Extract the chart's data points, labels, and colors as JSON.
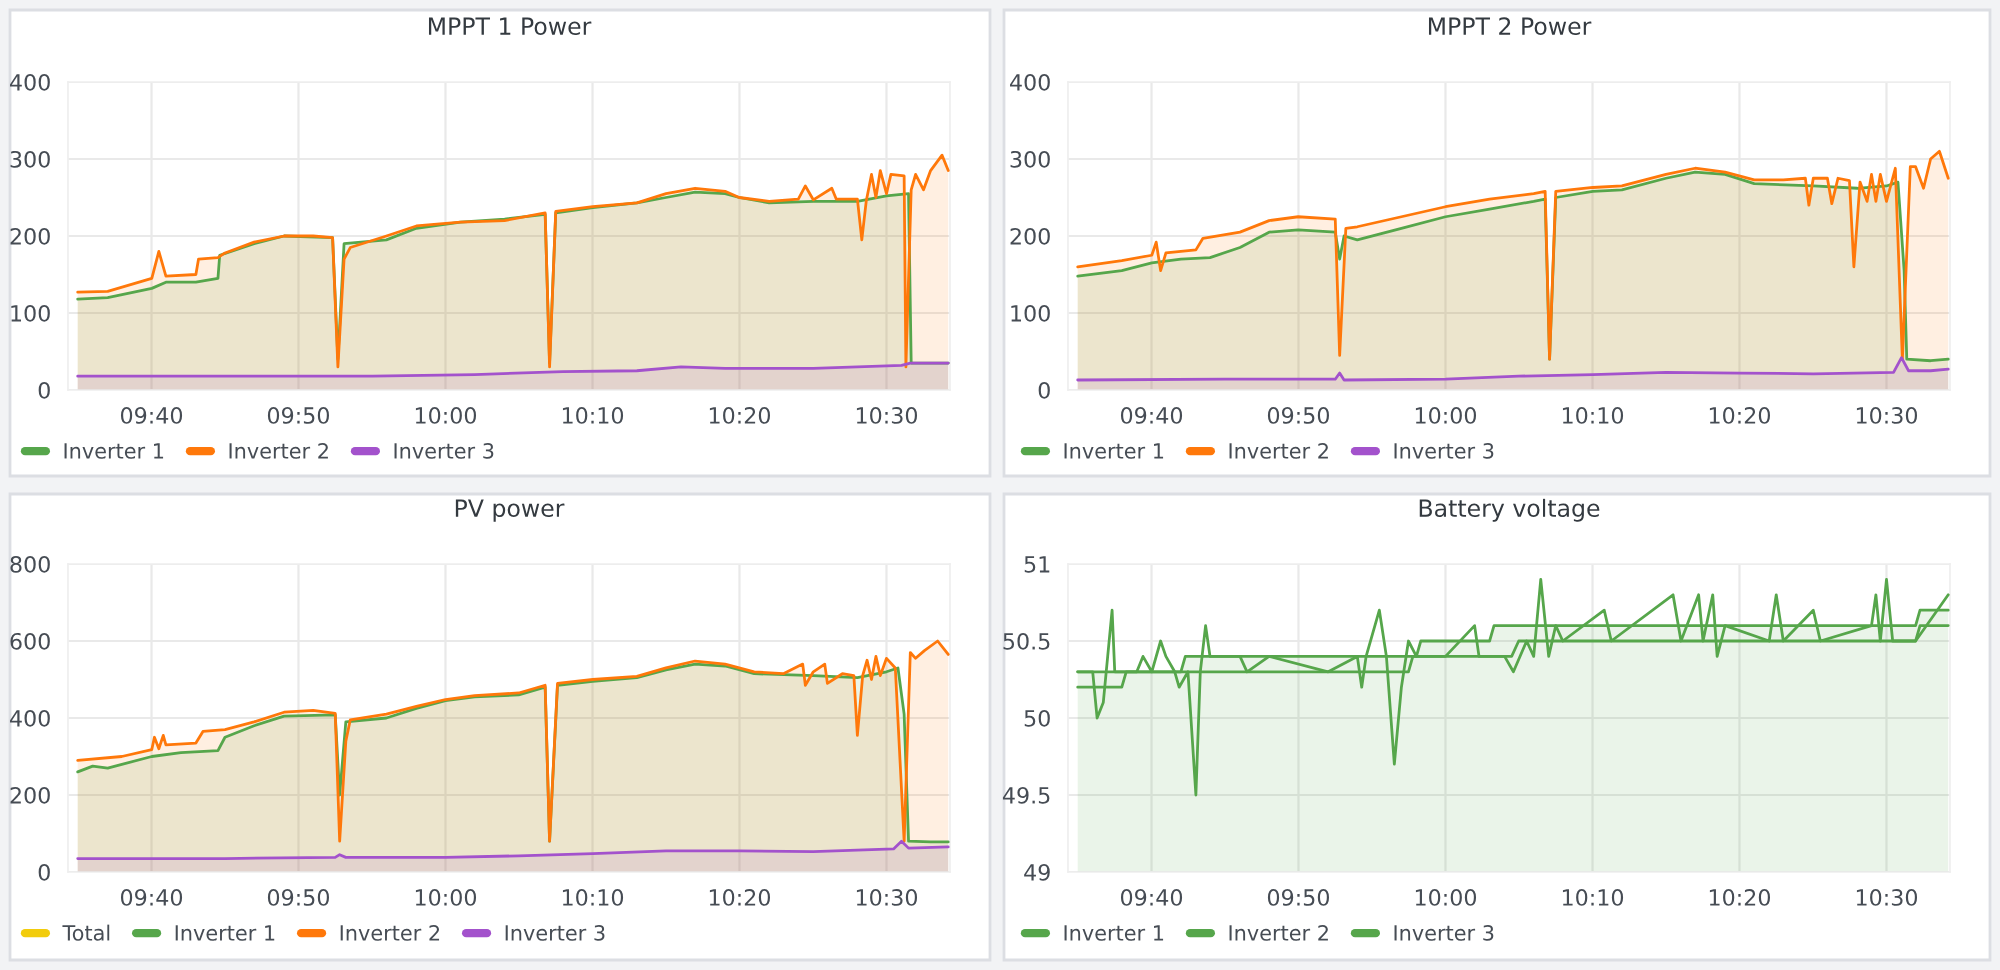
{
  "chart_data": [
    {
      "type": "area",
      "title": "MPPT 1 Power",
      "xlim": [
        9.572,
        10.572
      ],
      "ylim": [
        0,
        400
      ],
      "yticks": [
        0,
        100,
        200,
        300,
        400
      ],
      "grid": true,
      "legend": "bottom left",
      "xticks": [
        {
          "value": 9.6667,
          "label": "09:40"
        },
        {
          "value": 9.8333,
          "label": "09:50"
        },
        {
          "value": 10.0,
          "label": "10:00"
        },
        {
          "value": 10.1667,
          "label": "10:10"
        },
        {
          "value": 10.3333,
          "label": "10:20"
        },
        {
          "value": 10.5,
          "label": "10:30"
        }
      ],
      "series": [
        {
          "name": "Inverter 1",
          "color": "#56a64b",
          "x": [
            9.583,
            9.617,
            9.667,
            9.683,
            9.717,
            9.742,
            9.744,
            9.783,
            9.817,
            9.872,
            9.878,
            9.885,
            9.933,
            9.967,
            10.017,
            10.067,
            10.113,
            10.118,
            10.125,
            10.167,
            10.217,
            10.25,
            10.283,
            10.317,
            10.333,
            10.367,
            10.417,
            10.467,
            10.5,
            10.525,
            10.528,
            10.57
          ],
          "values": [
            118,
            120,
            132,
            140,
            140,
            145,
            175,
            190,
            200,
            198,
            40,
            190,
            195,
            210,
            218,
            222,
            228,
            35,
            230,
            237,
            243,
            250,
            257,
            255,
            250,
            243,
            245,
            245,
            252,
            255,
            35,
            35
          ]
        },
        {
          "name": "Inverter 2",
          "color": "#ff780a",
          "x": [
            9.583,
            9.617,
            9.667,
            9.675,
            9.683,
            9.717,
            9.72,
            9.742,
            9.75,
            9.783,
            9.817,
            9.85,
            9.872,
            9.878,
            9.885,
            9.892,
            9.933,
            9.967,
            10.017,
            10.067,
            10.113,
            10.118,
            10.125,
            10.167,
            10.217,
            10.25,
            10.283,
            10.317,
            10.333,
            10.367,
            10.4,
            10.408,
            10.417,
            10.438,
            10.443,
            10.467,
            10.472,
            10.477,
            10.483,
            10.488,
            10.493,
            10.5,
            10.505,
            10.52,
            10.522,
            10.528,
            10.533,
            10.542,
            10.55,
            10.563,
            10.57
          ],
          "values": [
            127,
            128,
            145,
            180,
            148,
            150,
            170,
            172,
            178,
            192,
            200,
            200,
            198,
            30,
            170,
            185,
            200,
            213,
            218,
            220,
            230,
            30,
            232,
            238,
            243,
            255,
            262,
            258,
            250,
            245,
            248,
            265,
            247,
            262,
            248,
            248,
            195,
            245,
            280,
            250,
            285,
            255,
            280,
            278,
            30,
            260,
            280,
            260,
            285,
            305,
            285
          ]
        },
        {
          "name": "Inverter 3",
          "color": "#a352cc",
          "x": [
            9.583,
            9.75,
            9.917,
            10.033,
            10.133,
            10.217,
            10.267,
            10.317,
            10.417,
            10.517,
            10.527,
            10.57
          ],
          "values": [
            18,
            18,
            18,
            20,
            24,
            25,
            30,
            28,
            28,
            32,
            35,
            35
          ]
        }
      ]
    },
    {
      "type": "area",
      "title": "MPPT 2 Power",
      "xlim": [
        9.572,
        10.572
      ],
      "ylim": [
        0,
        400
      ],
      "yticks": [
        0,
        100,
        200,
        300,
        400
      ],
      "grid": true,
      "legend": "bottom left",
      "xticks": [
        {
          "value": 9.6667,
          "label": "09:40"
        },
        {
          "value": 9.8333,
          "label": "09:50"
        },
        {
          "value": 10.0,
          "label": "10:00"
        },
        {
          "value": 10.1667,
          "label": "10:10"
        },
        {
          "value": 10.3333,
          "label": "10:20"
        },
        {
          "value": 10.5,
          "label": "10:30"
        }
      ],
      "series": [
        {
          "name": "Inverter 1",
          "color": "#56a64b",
          "x": [
            9.583,
            9.633,
            9.667,
            9.7,
            9.733,
            9.767,
            9.8,
            9.833,
            9.875,
            9.88,
            9.885,
            9.9,
            9.95,
            10.0,
            10.05,
            10.1,
            10.113,
            10.118,
            10.125,
            10.167,
            10.2,
            10.25,
            10.283,
            10.317,
            10.35,
            10.417,
            10.467,
            10.5,
            10.513,
            10.52,
            10.523,
            10.55,
            10.57
          ],
          "values": [
            148,
            155,
            165,
            170,
            172,
            185,
            205,
            208,
            205,
            170,
            200,
            195,
            210,
            225,
            235,
            245,
            248,
            40,
            250,
            258,
            260,
            275,
            283,
            280,
            268,
            265,
            262,
            265,
            270,
            155,
            40,
            38,
            40
          ]
        },
        {
          "name": "Inverter 2",
          "color": "#ff780a",
          "x": [
            9.583,
            9.633,
            9.667,
            9.672,
            9.677,
            9.683,
            9.717,
            9.725,
            9.767,
            9.8,
            9.833,
            9.875,
            9.88,
            9.887,
            9.9,
            9.95,
            10.0,
            10.05,
            10.1,
            10.113,
            10.118,
            10.125,
            10.167,
            10.2,
            10.25,
            10.283,
            10.317,
            10.35,
            10.383,
            10.408,
            10.412,
            10.417,
            10.433,
            10.438,
            10.445,
            10.458,
            10.463,
            10.47,
            10.478,
            10.483,
            10.488,
            10.493,
            10.5,
            10.51,
            10.518,
            10.527,
            10.533,
            10.542,
            10.55,
            10.56,
            10.57
          ],
          "values": [
            160,
            168,
            175,
            192,
            155,
            178,
            182,
            197,
            205,
            220,
            225,
            222,
            45,
            210,
            212,
            225,
            238,
            248,
            255,
            258,
            40,
            258,
            263,
            265,
            280,
            288,
            283,
            273,
            273,
            275,
            240,
            275,
            275,
            242,
            275,
            272,
            160,
            270,
            245,
            280,
            245,
            280,
            245,
            288,
            40,
            290,
            290,
            262,
            300,
            310,
            275
          ]
        },
        {
          "name": "Inverter 3",
          "color": "#a352cc",
          "x": [
            9.583,
            9.75,
            9.875,
            9.88,
            9.885,
            10.0,
            10.083,
            10.167,
            10.25,
            10.333,
            10.417,
            10.508,
            10.517,
            10.525,
            10.55,
            10.57
          ],
          "values": [
            13,
            14,
            14,
            22,
            13,
            14,
            18,
            20,
            23,
            22,
            21,
            23,
            42,
            25,
            25,
            27
          ]
        }
      ]
    },
    {
      "type": "area",
      "title": "PV power",
      "xlim": [
        9.572,
        10.572
      ],
      "ylim": [
        0,
        800
      ],
      "yticks": [
        0,
        200,
        400,
        600,
        800
      ],
      "grid": true,
      "legend": "bottom left",
      "xticks": [
        {
          "value": 9.6667,
          "label": "09:40"
        },
        {
          "value": 9.8333,
          "label": "09:50"
        },
        {
          "value": 10.0,
          "label": "10:00"
        },
        {
          "value": 10.1667,
          "label": "10:10"
        },
        {
          "value": 10.3333,
          "label": "10:20"
        },
        {
          "value": 10.5,
          "label": "10:30"
        }
      ],
      "series": [
        {
          "name": "Total",
          "color": "#f2cc0c"
        },
        {
          "name": "Inverter 1",
          "color": "#56a64b",
          "x": [
            9.583,
            9.6,
            9.617,
            9.667,
            9.7,
            9.742,
            9.75,
            9.783,
            9.817,
            9.875,
            9.88,
            9.887,
            9.933,
            9.967,
            10.0,
            10.033,
            10.083,
            10.113,
            10.118,
            10.127,
            10.167,
            10.217,
            10.25,
            10.283,
            10.317,
            10.35,
            10.417,
            10.467,
            10.5,
            10.513,
            10.52,
            10.525,
            10.55,
            10.57
          ],
          "values": [
            260,
            275,
            270,
            300,
            310,
            315,
            350,
            380,
            405,
            408,
            200,
            390,
            400,
            425,
            445,
            455,
            460,
            480,
            80,
            485,
            495,
            505,
            525,
            540,
            535,
            515,
            510,
            505,
            520,
            530,
            410,
            80,
            78,
            78
          ]
        },
        {
          "name": "Inverter 2",
          "color": "#ff780a",
          "x": [
            9.583,
            9.633,
            9.667,
            9.67,
            9.675,
            9.68,
            9.683,
            9.717,
            9.725,
            9.75,
            9.783,
            9.817,
            9.85,
            9.875,
            9.88,
            9.887,
            9.892,
            9.933,
            9.967,
            10.0,
            10.033,
            10.083,
            10.113,
            10.118,
            10.127,
            10.167,
            10.217,
            10.25,
            10.283,
            10.317,
            10.35,
            10.383,
            10.405,
            10.408,
            10.417,
            10.43,
            10.433,
            10.45,
            10.463,
            10.467,
            10.473,
            10.478,
            10.483,
            10.488,
            10.493,
            10.5,
            10.51,
            10.52,
            10.527,
            10.533,
            10.543,
            10.558,
            10.57
          ],
          "values": [
            290,
            300,
            318,
            350,
            320,
            355,
            330,
            335,
            365,
            370,
            390,
            415,
            420,
            412,
            80,
            340,
            395,
            410,
            430,
            448,
            458,
            465,
            485,
            80,
            490,
            500,
            508,
            530,
            548,
            540,
            520,
            515,
            540,
            485,
            520,
            540,
            490,
            515,
            510,
            355,
            510,
            550,
            500,
            560,
            510,
            555,
            530,
            80,
            570,
            555,
            575,
            600,
            565
          ]
        },
        {
          "name": "Inverter 3",
          "color": "#a352cc",
          "x": [
            9.583,
            9.75,
            9.875,
            9.88,
            9.887,
            10.0,
            10.083,
            10.167,
            10.25,
            10.333,
            10.417,
            10.508,
            10.517,
            10.525,
            10.57
          ],
          "values": [
            35,
            35,
            38,
            45,
            38,
            38,
            42,
            48,
            55,
            55,
            53,
            60,
            80,
            62,
            65
          ]
        }
      ]
    },
    {
      "type": "area",
      "title": "Battery voltage",
      "xlim": [
        9.572,
        10.572
      ],
      "ylim": [
        49,
        51
      ],
      "yticks": [
        49,
        49.5,
        50,
        50.5,
        51
      ],
      "grid": true,
      "legend": "bottom left",
      "xticks": [
        {
          "value": 9.6667,
          "label": "09:40"
        },
        {
          "value": 9.8333,
          "label": "09:50"
        },
        {
          "value": 10.0,
          "label": "10:00"
        },
        {
          "value": 10.1667,
          "label": "10:10"
        },
        {
          "value": 10.3333,
          "label": "10:20"
        },
        {
          "value": 10.5,
          "label": "10:30"
        }
      ],
      "series": [
        {
          "name": "Inverter 1",
          "color": "#56a64b",
          "x": [
            9.583,
            9.7,
            9.705,
            9.967,
            9.972,
            10.05,
            10.055,
            10.533,
            10.538,
            10.57
          ],
          "values": [
            50.3,
            50.3,
            50.4,
            50.4,
            50.5,
            50.5,
            50.6,
            50.6,
            50.7,
            50.7
          ]
        },
        {
          "name": "Inverter 2",
          "type": "line",
          "color": "#56a64b",
          "x": [
            9.583,
            9.633,
            9.638,
            9.958,
            9.963,
            10.075,
            10.083,
            10.533,
            10.538,
            10.57
          ],
          "values": [
            50.2,
            50.2,
            50.3,
            50.3,
            50.4,
            50.4,
            50.5,
            50.5,
            50.6,
            50.6
          ]
        },
        {
          "name": "Inverter 3",
          "type": "line",
          "color": "#56a64b",
          "x": [
            9.583,
            9.6,
            9.605,
            9.612,
            9.617,
            9.622,
            9.625,
            9.65,
            9.657,
            9.667,
            9.677,
            9.683,
            9.693,
            9.698,
            9.708,
            9.717,
            9.722,
            9.728,
            9.733,
            9.767,
            9.775,
            9.8,
            9.867,
            9.9,
            9.905,
            9.91,
            9.925,
            9.933,
            9.942,
            9.95,
            9.958,
            9.967,
            10.0,
            10.033,
            10.038,
            10.067,
            10.077,
            10.092,
            10.1,
            10.108,
            10.117,
            10.125,
            10.133,
            10.18,
            10.188,
            10.258,
            10.267,
            10.287,
            10.292,
            10.303,
            10.308,
            10.317,
            10.367,
            10.375,
            10.383,
            10.417,
            10.425,
            10.483,
            10.488,
            10.493,
            10.5,
            10.507,
            10.533,
            10.57
          ],
          "values": [
            50.3,
            50.3,
            50.0,
            50.1,
            50.4,
            50.7,
            50.3,
            50.3,
            50.4,
            50.3,
            50.5,
            50.4,
            50.3,
            50.2,
            50.3,
            49.5,
            50.3,
            50.6,
            50.4,
            50.4,
            50.3,
            50.4,
            50.3,
            50.4,
            50.2,
            50.4,
            50.7,
            50.4,
            49.7,
            50.2,
            50.5,
            50.4,
            50.4,
            50.6,
            50.4,
            50.4,
            50.3,
            50.5,
            50.4,
            50.9,
            50.4,
            50.6,
            50.5,
            50.7,
            50.5,
            50.8,
            50.5,
            50.8,
            50.5,
            50.8,
            50.4,
            50.6,
            50.5,
            50.8,
            50.5,
            50.7,
            50.5,
            50.6,
            50.8,
            50.5,
            50.9,
            50.5,
            50.5,
            50.8
          ]
        }
      ]
    }
  ]
}
